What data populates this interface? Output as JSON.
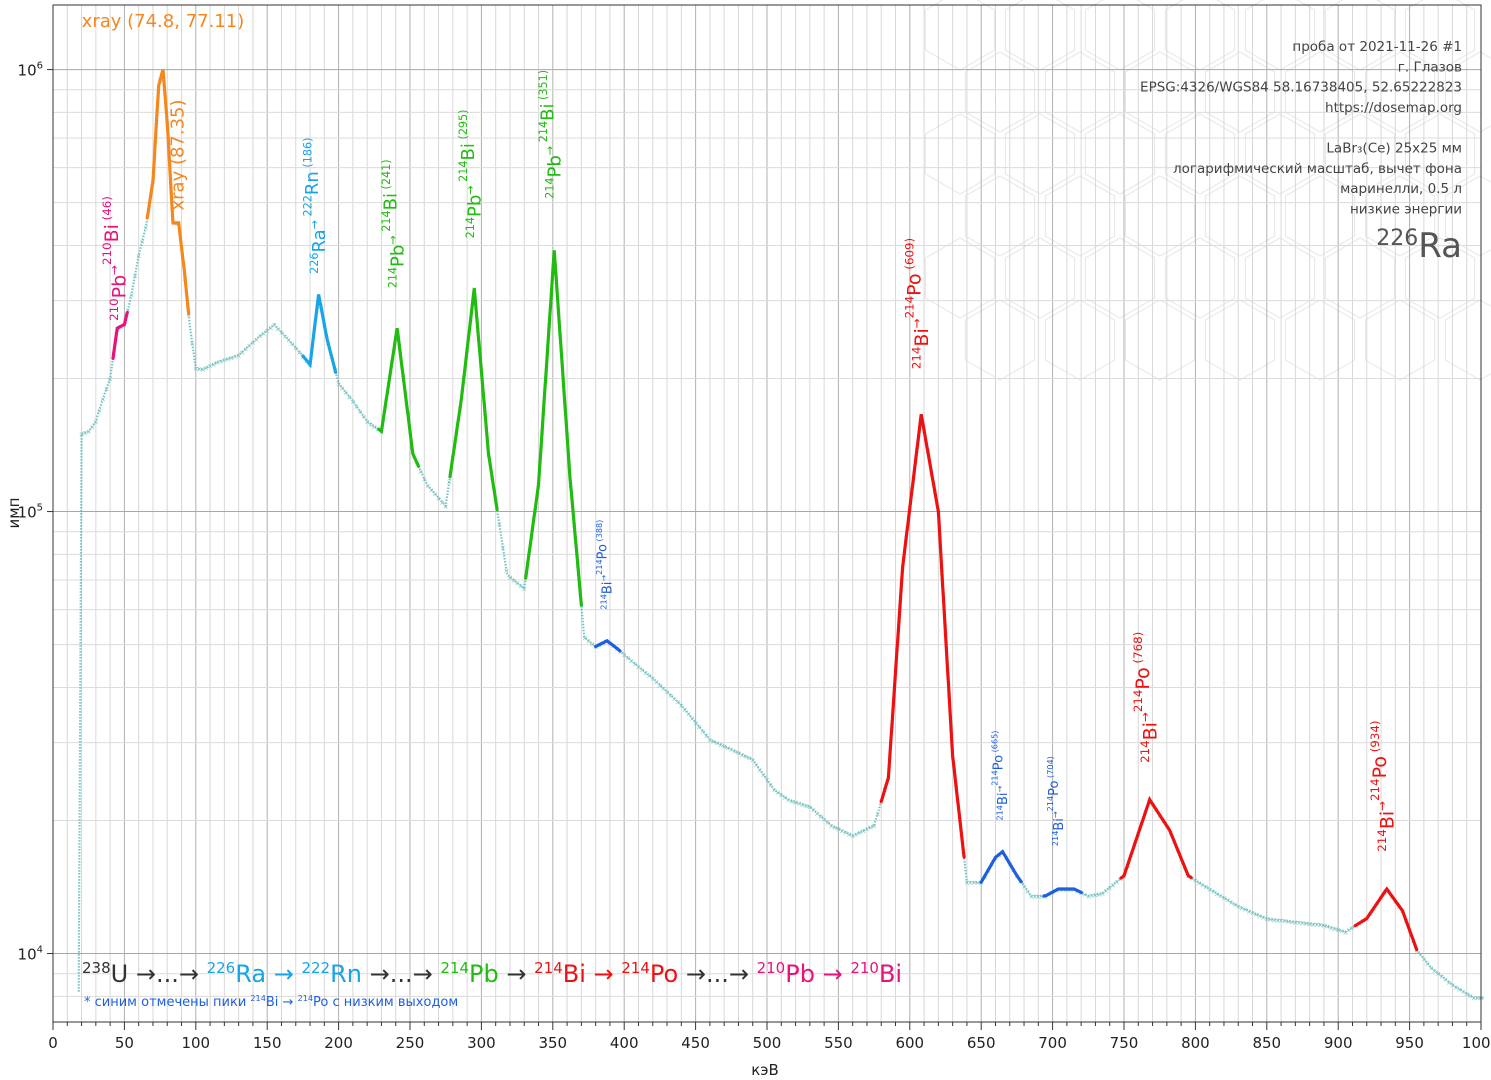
{
  "chart_data": {
    "type": "line",
    "xlabel": "кэВ",
    "ylabel": "имп",
    "xlim": [
      0,
      1000
    ],
    "ylim": [
      7000,
      1400000
    ],
    "yscale": "log",
    "grid": true,
    "x_ticks": [
      0,
      50,
      100,
      150,
      200,
      250,
      300,
      350,
      400,
      450,
      500,
      550,
      600,
      650,
      700,
      750,
      800,
      850,
      900,
      950,
      1000
    ],
    "y_tick_labels": [
      {
        "value": 10000,
        "base": "10",
        "exp": "4"
      },
      {
        "value": 100000,
        "base": "10",
        "exp": "5"
      },
      {
        "value": 1000000,
        "base": "10",
        "exp": "6"
      }
    ],
    "info_lines": [
      "проба от 2021-11-26 #1",
      "г. Глазов",
      "EPSG:4326/WGS84  58.16738405, 52.65222823",
      "https://dosemap.org",
      "",
      "LaBr₃(Ce) 25x25 мм",
      "логарифмический масштаб, вычет фона",
      "маринелли, 0.5 л",
      "низкие энергии"
    ],
    "isotope": {
      "mass": "226",
      "symbol": "Ra"
    },
    "colors": {
      "background_points": "#5fb8b8",
      "pb210": "#e8127a",
      "xray": "#f5871f",
      "ra226": "#19a4e6",
      "pb214": "#22bb11",
      "bi214_low": "#1e5fe0",
      "bi214": "#ee1111"
    },
    "series": [
      {
        "name": "spectrum",
        "color_key": "background_points",
        "points": [
          [
            18,
            8200
          ],
          [
            20,
            150000
          ],
          [
            25,
            152000
          ],
          [
            30,
            160000
          ],
          [
            35,
            180000
          ],
          [
            40,
            200000
          ],
          [
            45,
            260000
          ],
          [
            50,
            265000
          ],
          [
            55,
            310000
          ],
          [
            60,
            380000
          ],
          [
            65,
            440000
          ],
          [
            70,
            560000
          ],
          [
            74,
            920000
          ],
          [
            77,
            1000000
          ],
          [
            80,
            760000
          ],
          [
            84,
            450000
          ],
          [
            88,
            450000
          ],
          [
            92,
            350000
          ],
          [
            96,
            260000
          ],
          [
            100,
            211000
          ],
          [
            105,
            210000
          ],
          [
            115,
            218000
          ],
          [
            130,
            226000
          ],
          [
            145,
            250000
          ],
          [
            155,
            265000
          ],
          [
            165,
            245000
          ],
          [
            175,
            225000
          ],
          [
            180,
            215000
          ],
          [
            186,
            310000
          ],
          [
            192,
            245000
          ],
          [
            200,
            195000
          ],
          [
            210,
            178000
          ],
          [
            220,
            160000
          ],
          [
            230,
            152000
          ],
          [
            241,
            260000
          ],
          [
            252,
            135000
          ],
          [
            262,
            115000
          ],
          [
            275,
            103000
          ],
          [
            286,
            180000
          ],
          [
            295,
            320000
          ],
          [
            305,
            135000
          ],
          [
            318,
            72000
          ],
          [
            330,
            67000
          ],
          [
            340,
            115000
          ],
          [
            351,
            390000
          ],
          [
            362,
            120000
          ],
          [
            372,
            52000
          ],
          [
            380,
            49500
          ],
          [
            388,
            51000
          ],
          [
            395,
            49000
          ],
          [
            405,
            46000
          ],
          [
            420,
            42000
          ],
          [
            440,
            36500
          ],
          [
            460,
            30500
          ],
          [
            475,
            29000
          ],
          [
            490,
            27500
          ],
          [
            505,
            23500
          ],
          [
            515,
            22300
          ],
          [
            530,
            21500
          ],
          [
            545,
            19500
          ],
          [
            560,
            18500
          ],
          [
            575,
            19500
          ],
          [
            585,
            25000
          ],
          [
            595,
            75000
          ],
          [
            608,
            166000
          ],
          [
            620,
            100000
          ],
          [
            630,
            28000
          ],
          [
            640,
            14500
          ],
          [
            650,
            14500
          ],
          [
            660,
            16500
          ],
          [
            665,
            17000
          ],
          [
            675,
            15000
          ],
          [
            685,
            13500
          ],
          [
            695,
            13500
          ],
          [
            704,
            14000
          ],
          [
            715,
            14000
          ],
          [
            725,
            13500
          ],
          [
            735,
            13700
          ],
          [
            750,
            15000
          ],
          [
            768,
            22300
          ],
          [
            782,
            19000
          ],
          [
            795,
            15000
          ],
          [
            810,
            14000
          ],
          [
            830,
            12800
          ],
          [
            850,
            12000
          ],
          [
            870,
            11800
          ],
          [
            890,
            11600
          ],
          [
            905,
            11200
          ],
          [
            920,
            12000
          ],
          [
            934,
            14000
          ],
          [
            945,
            12500
          ],
          [
            955,
            10200
          ],
          [
            965,
            9300
          ],
          [
            980,
            8500
          ],
          [
            995,
            7950
          ],
          [
            1002,
            7950
          ]
        ]
      }
    ],
    "highlights": [
      {
        "color_key": "pb210",
        "range": [
          42,
          52
        ]
      },
      {
        "color_key": "xray",
        "range": [
          66,
          95
        ]
      },
      {
        "color_key": "ra226",
        "range": [
          175,
          198
        ]
      },
      {
        "color_key": "pb214",
        "range": [
          228,
          256
        ]
      },
      {
        "color_key": "pb214",
        "range": [
          278,
          311
        ]
      },
      {
        "color_key": "pb214",
        "range": [
          331,
          370
        ]
      },
      {
        "color_key": "bi214_low",
        "range": [
          380,
          397
        ]
      },
      {
        "color_key": "bi214",
        "range": [
          580,
          638
        ]
      },
      {
        "color_key": "bi214_low",
        "range": [
          650,
          678
        ]
      },
      {
        "color_key": "bi214_low",
        "range": [
          694,
          720
        ]
      },
      {
        "color_key": "bi214",
        "range": [
          748,
          797
        ]
      },
      {
        "color_key": "bi214",
        "range": [
          912,
          955
        ]
      }
    ],
    "peak_labels": [
      {
        "text": [
          [
            "210",
            "Pb"
          ],
          [
            "→",
            ""
          ],
          [
            "210",
            "Bi"
          ],
          [
            " (46)",
            ""
          ]
        ],
        "color_key": "pb210",
        "rotated": true,
        "size": 19,
        "ax": 46,
        "ay": 270000
      },
      {
        "text": [
          [
            "",
            "xray (74.8, 77.11)"
          ]
        ],
        "color_key": "xray",
        "rotated": false,
        "size": 18,
        "ax": 77,
        "ay": 1250000
      },
      {
        "text": [
          [
            "",
            "xray (87.35)"
          ]
        ],
        "color_key": "xray",
        "rotated": true,
        "size": 18,
        "ax": 87,
        "ay": 480000
      },
      {
        "text": [
          [
            "226",
            "Ra"
          ],
          [
            "→ ",
            ""
          ],
          [
            "222",
            "Rn"
          ],
          [
            " (186)",
            ""
          ]
        ],
        "color_key": "ra226",
        "rotated": true,
        "size": 18,
        "ax": 186,
        "ay": 345000
      },
      {
        "text": [
          [
            "214",
            "Pb"
          ],
          [
            "→ ",
            ""
          ],
          [
            "214",
            "Bi"
          ],
          [
            " (241)",
            ""
          ]
        ],
        "color_key": "pb214",
        "rotated": true,
        "size": 18,
        "ax": 241,
        "ay": 320000
      },
      {
        "text": [
          [
            "214",
            "Pb"
          ],
          [
            "→ ",
            ""
          ],
          [
            "214",
            "Bi"
          ],
          [
            " (295)",
            ""
          ]
        ],
        "color_key": "pb214",
        "rotated": true,
        "size": 18,
        "ax": 295,
        "ay": 415000
      },
      {
        "text": [
          [
            "214",
            "Pb"
          ],
          [
            "→ ",
            ""
          ],
          [
            "214",
            "Bi"
          ],
          [
            " (351)",
            ""
          ]
        ],
        "color_key": "pb214",
        "rotated": true,
        "size": 18,
        "ax": 351,
        "ay": 510000
      },
      {
        "text": [
          [
            "214",
            "Bi"
          ],
          [
            "→",
            ""
          ],
          [
            "214",
            "Po"
          ],
          [
            " (388)",
            ""
          ]
        ],
        "color_key": "bi214_low",
        "rotated": true,
        "size": 13,
        "ax": 388,
        "ay": 60000
      },
      {
        "text": [
          [
            "214",
            "Bi"
          ],
          [
            "→",
            ""
          ],
          [
            "214",
            "Po"
          ],
          [
            " (609)",
            ""
          ]
        ],
        "color_key": "bi214",
        "rotated": true,
        "size": 19,
        "ax": 608,
        "ay": 210000
      },
      {
        "text": [
          [
            "214",
            "Bi"
          ],
          [
            "→",
            ""
          ],
          [
            "214",
            "Po"
          ],
          [
            " (665)",
            ""
          ]
        ],
        "color_key": "bi214_low",
        "rotated": true,
        "size": 13,
        "ax": 665,
        "ay": 20000
      },
      {
        "text": [
          [
            "214",
            "Bi"
          ],
          [
            "→",
            ""
          ],
          [
            "214",
            "Po"
          ],
          [
            " (704)",
            ""
          ]
        ],
        "color_key": "bi214_low",
        "rotated": true,
        "size": 13,
        "ax": 704,
        "ay": 17500
      },
      {
        "text": [
          [
            "214",
            "Bi"
          ],
          [
            "→",
            ""
          ],
          [
            "214",
            "Po"
          ],
          [
            " (768)",
            ""
          ]
        ],
        "color_key": "bi214",
        "rotated": true,
        "size": 19,
        "ax": 768,
        "ay": 27000
      },
      {
        "text": [
          [
            "214",
            "Bi"
          ],
          [
            "→",
            ""
          ],
          [
            "214",
            "Po"
          ],
          [
            " (934)",
            ""
          ]
        ],
        "color_key": "bi214",
        "rotated": true,
        "size": 19,
        "ax": 934,
        "ay": 17000
      }
    ],
    "decay_chain": [
      {
        "mass": "238",
        "symbol": "U",
        "color_key": "text_dark"
      },
      {
        "mass": "",
        "symbol": " →...→ ",
        "color_key": "text_dark"
      },
      {
        "mass": "226",
        "symbol": "Ra",
        "color_key": "ra226"
      },
      {
        "mass": "",
        "symbol": " → ",
        "color_key": "ra226"
      },
      {
        "mass": "222",
        "symbol": "Rn",
        "color_key": "ra226"
      },
      {
        "mass": "",
        "symbol": " →...→ ",
        "color_key": "text_dark"
      },
      {
        "mass": "214",
        "symbol": "Pb",
        "color_key": "pb214"
      },
      {
        "mass": "",
        "symbol": " → ",
        "color_key": "text_dark"
      },
      {
        "mass": "214",
        "symbol": "Bi",
        "color_key": "bi214"
      },
      {
        "mass": "",
        "symbol": " → ",
        "color_key": "bi214"
      },
      {
        "mass": "214",
        "symbol": "Po",
        "color_key": "bi214"
      },
      {
        "mass": "",
        "symbol": " →...→ ",
        "color_key": "text_dark"
      },
      {
        "mass": "210",
        "symbol": "Pb",
        "color_key": "pb210"
      },
      {
        "mass": "",
        "symbol": " → ",
        "color_key": "pb210"
      },
      {
        "mass": "210",
        "symbol": "Bi",
        "color_key": "pb210"
      }
    ],
    "footnote": {
      "parts": [
        [
          "",
          "* синим отмечены пики "
        ],
        [
          "214",
          "Bi"
        ],
        [
          "",
          " → "
        ],
        [
          "214",
          "Po"
        ],
        [
          "",
          " с низким выходом"
        ]
      ],
      "color_key": "bi214_low"
    }
  }
}
